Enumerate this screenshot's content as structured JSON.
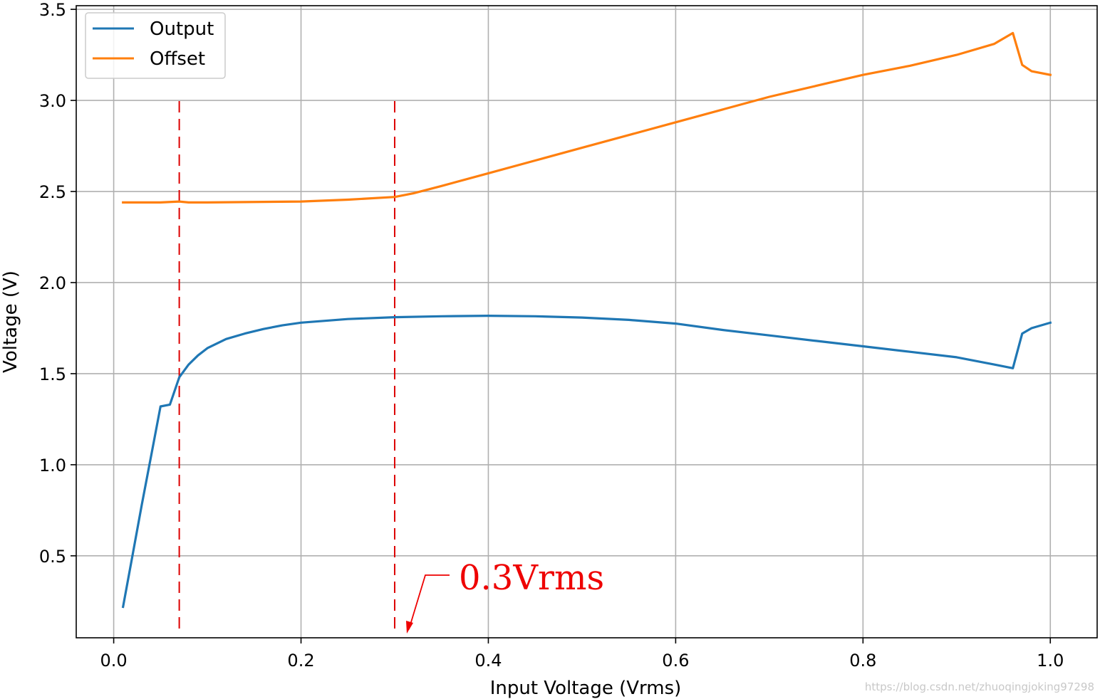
{
  "chart_data": {
    "type": "line",
    "title": "",
    "xlabel": "Input Voltage (Vrms)",
    "ylabel": "Voltage (V)",
    "xlim": [
      -0.04,
      1.05
    ],
    "ylim": [
      0.05,
      3.52
    ],
    "grid": true,
    "legend_position": "top-left",
    "x_ticks": [
      0.0,
      0.2,
      0.4,
      0.6,
      0.8,
      1.0
    ],
    "x_tick_labels": [
      "0.0",
      "0.2",
      "0.4",
      "0.6",
      "0.8",
      "1.0"
    ],
    "y_ticks": [
      0.5,
      1.0,
      1.5,
      2.0,
      2.5,
      3.0,
      3.5
    ],
    "y_tick_labels": [
      "0.5",
      "1.0",
      "1.5",
      "2.0",
      "2.5",
      "3.0",
      "3.5"
    ],
    "series": [
      {
        "name": "Output",
        "color": "#1f77b4",
        "x": [
          0.01,
          0.02,
          0.03,
          0.04,
          0.05,
          0.06,
          0.07,
          0.08,
          0.09,
          0.1,
          0.12,
          0.14,
          0.16,
          0.18,
          0.2,
          0.25,
          0.3,
          0.35,
          0.4,
          0.45,
          0.5,
          0.55,
          0.6,
          0.65,
          0.7,
          0.75,
          0.8,
          0.85,
          0.9,
          0.94,
          0.96,
          0.97,
          0.98,
          1.0
        ],
        "y": [
          0.22,
          0.5,
          0.78,
          1.05,
          1.32,
          1.33,
          1.48,
          1.55,
          1.6,
          1.64,
          1.69,
          1.72,
          1.745,
          1.765,
          1.78,
          1.8,
          1.81,
          1.815,
          1.818,
          1.815,
          1.808,
          1.795,
          1.775,
          1.74,
          1.71,
          1.68,
          1.65,
          1.62,
          1.59,
          1.55,
          1.53,
          1.72,
          1.75,
          1.78
        ]
      },
      {
        "name": "Offset",
        "color": "#ff7f0e",
        "x": [
          0.01,
          0.05,
          0.07,
          0.08,
          0.1,
          0.2,
          0.25,
          0.3,
          0.32,
          0.35,
          0.4,
          0.45,
          0.5,
          0.55,
          0.6,
          0.65,
          0.7,
          0.75,
          0.8,
          0.85,
          0.9,
          0.94,
          0.96,
          0.97,
          0.98,
          1.0
        ],
        "y": [
          2.44,
          2.44,
          2.445,
          2.44,
          2.44,
          2.445,
          2.455,
          2.47,
          2.49,
          2.53,
          2.6,
          2.67,
          2.74,
          2.81,
          2.88,
          2.95,
          3.02,
          3.08,
          3.14,
          3.19,
          3.25,
          3.31,
          3.37,
          3.195,
          3.16,
          3.14
        ]
      }
    ],
    "reference_lines": [
      {
        "x": 0.07,
        "color": "#dd0000",
        "style": "dashed"
      },
      {
        "x": 0.3,
        "color": "#dd0000",
        "style": "dashed"
      }
    ],
    "annotations": [
      {
        "text": "0.3Vrms",
        "color": "#ee0000"
      }
    ]
  },
  "watermark": "https://blog.csdn.net/zhuoqingjoking97298"
}
